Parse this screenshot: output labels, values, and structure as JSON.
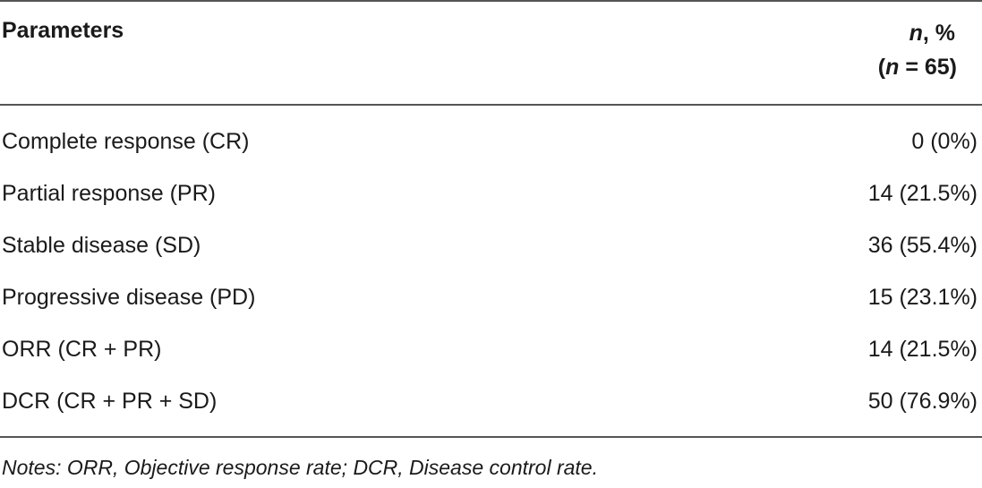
{
  "table": {
    "header": {
      "parameters": "Parameters",
      "value_n": "n",
      "value_suffix": ", %",
      "sub_open": "(",
      "sub_n": "n",
      "sub_rest": " = 65)"
    },
    "rows": [
      {
        "label": "Complete response (CR)",
        "value": "0 (0%)"
      },
      {
        "label": "Partial response (PR)",
        "value": "14 (21.5%)"
      },
      {
        "label": "Stable disease (SD)",
        "value": "36 (55.4%)"
      },
      {
        "label": "Progressive disease (PD)",
        "value": "15 (23.1%)"
      },
      {
        "label": "ORR (CR + PR)",
        "value": "14 (21.5%)"
      },
      {
        "label": "DCR (CR + PR + SD)",
        "value": "50 (76.9%)"
      }
    ],
    "notes": "Notes: ORR, Objective response rate; DCR, Disease control rate."
  }
}
